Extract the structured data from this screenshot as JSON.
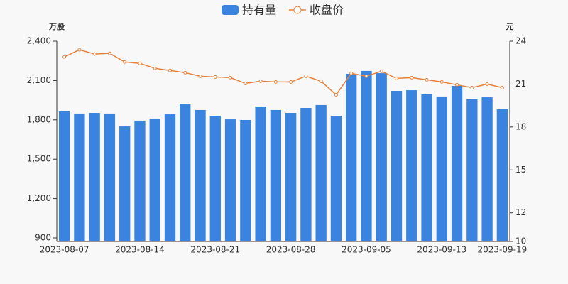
{
  "chart_data": {
    "type": "bar-line",
    "categories": [
      "2023-08-07",
      null,
      null,
      null,
      null,
      "2023-08-14",
      null,
      null,
      null,
      null,
      "2023-08-21",
      null,
      null,
      null,
      null,
      "2023-08-28",
      null,
      null,
      null,
      null,
      "2023-09-05",
      null,
      null,
      null,
      null,
      "2023-09-13",
      null,
      null,
      null,
      "2023-09-19"
    ],
    "y_unit": "万股",
    "y2_unit": "元",
    "series": [
      {
        "name": "持有量",
        "type": "bar",
        "color": "#3a84e0",
        "values": [
          1864,
          1848,
          1853,
          1848,
          1750,
          1794,
          1810,
          1842,
          1923,
          1875,
          1831,
          1804,
          1799,
          1902,
          1875,
          1853,
          1891,
          1913,
          1831,
          2151,
          2173,
          2156,
          2021,
          2026,
          1994,
          1978,
          2059,
          1961,
          1972,
          1880
        ]
      },
      {
        "name": "收盘价",
        "type": "line",
        "axis": "y2",
        "color": "#e8803a",
        "values": [
          22.9,
          23.4,
          23.1,
          23.15,
          22.55,
          22.45,
          22.1,
          21.95,
          21.8,
          21.55,
          21.5,
          21.45,
          21.05,
          21.2,
          21.15,
          21.15,
          21.55,
          21.2,
          20.25,
          21.75,
          21.55,
          21.9,
          21.4,
          21.45,
          21.3,
          21.15,
          20.95,
          20.75,
          21.0,
          20.75
        ]
      }
    ],
    "ylim": [
      873,
      2400
    ],
    "yticks": [
      900,
      {
        "value": 1200,
        "label": "1,200"
      },
      {
        "value": 1500,
        "label": "1,500"
      },
      {
        "value": 1800,
        "label": "1,800"
      },
      {
        "value": 2100,
        "label": "2,100"
      },
      {
        "value": 2400,
        "label": "2,400"
      }
    ],
    "y2lim": [
      10,
      24
    ],
    "y2ticks": [
      10,
      12,
      15,
      18,
      21,
      24
    ],
    "legend": "top"
  }
}
